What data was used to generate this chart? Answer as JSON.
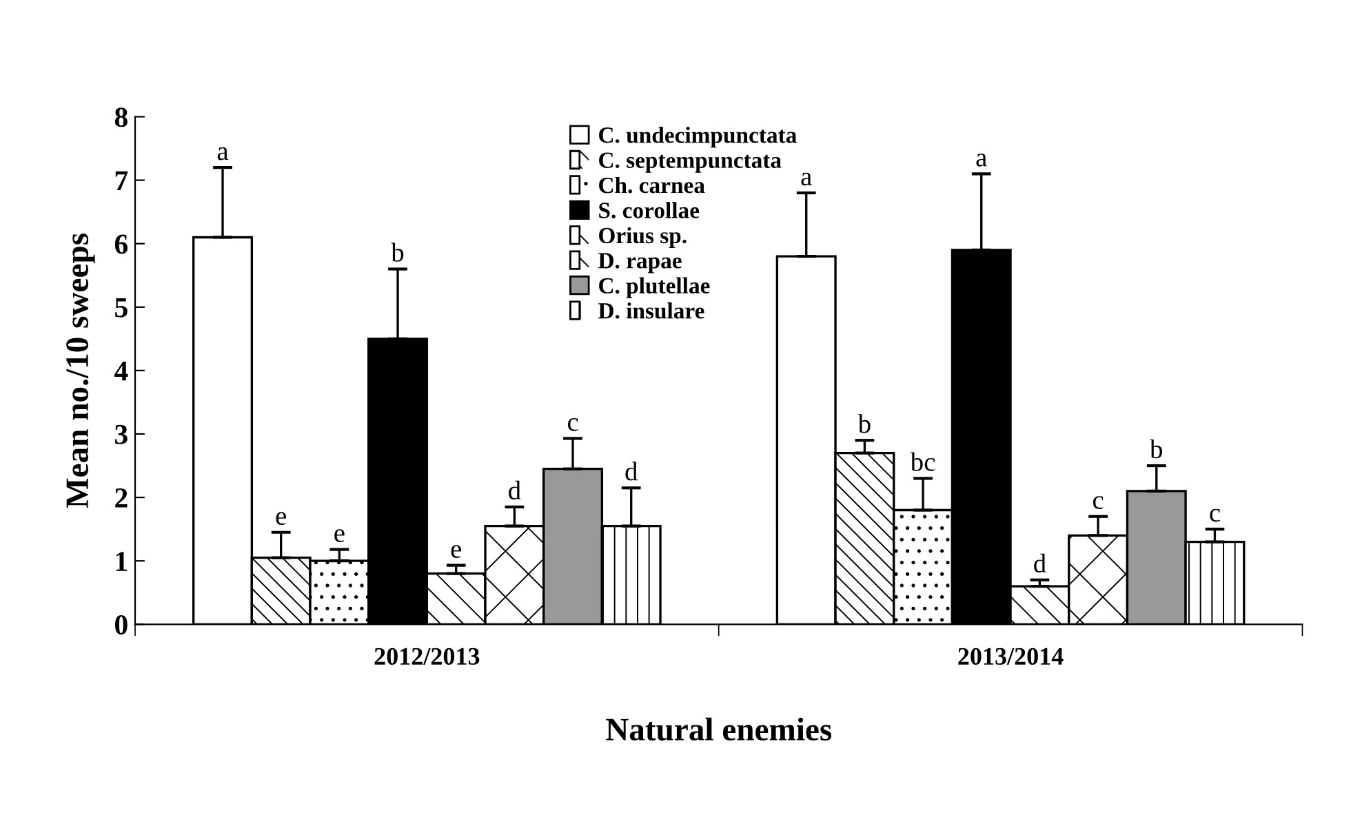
{
  "chart_data": {
    "type": "bar",
    "xlabel": "Natural enemies",
    "ylabel": "Mean no./10 sweeps",
    "categories": [
      "2012/2013",
      "2013/2014"
    ],
    "ylim": [
      0,
      8
    ],
    "yticks": [
      0,
      1,
      2,
      3,
      4,
      5,
      6,
      7,
      8
    ],
    "grid": false,
    "legend": "top",
    "series": [
      {
        "name": "C. undecimpunctata",
        "color": "#ffffff",
        "values": [
          6.1,
          5.8
        ],
        "errors": [
          [
            6.1,
            7.2
          ],
          [
            5.8,
            6.8
          ]
        ],
        "value_labels": [
          "a",
          "a"
        ]
      },
      {
        "name": "C. septempunctata",
        "color": "#ffffff",
        "values": [
          1.05,
          2.7
        ],
        "errors": [
          [
            1.05,
            1.45
          ],
          [
            2.7,
            2.9
          ]
        ],
        "value_labels": [
          "e",
          "b"
        ]
      },
      {
        "name": "Ch. carnea",
        "color": "#ffffff",
        "values": [
          1.0,
          1.8
        ],
        "errors": [
          [
            1.0,
            1.18
          ],
          [
            1.8,
            2.3
          ]
        ],
        "value_labels": [
          "e",
          "bc"
        ]
      },
      {
        "name": "S. corollae",
        "color": "#000000",
        "values": [
          4.5,
          5.9
        ],
        "errors": [
          [
            4.5,
            5.6
          ],
          [
            5.9,
            7.1
          ]
        ],
        "value_labels": [
          "b",
          "a"
        ]
      },
      {
        "name": "Orius sp.",
        "color": "#ffffff",
        "values": [
          0.8,
          0.6
        ],
        "errors": [
          [
            0.8,
            0.93
          ],
          [
            0.6,
            0.7
          ]
        ],
        "value_labels": [
          "e",
          "d"
        ]
      },
      {
        "name": "D. rapae",
        "color": "#ffffff",
        "values": [
          1.55,
          1.4
        ],
        "errors": [
          [
            1.55,
            1.85
          ],
          [
            1.4,
            1.7
          ]
        ],
        "value_labels": [
          "d",
          "c"
        ]
      },
      {
        "name": "C. plutellae",
        "color": "#999999",
        "values": [
          2.45,
          2.1
        ],
        "errors": [
          [
            2.45,
            2.93
          ],
          [
            2.1,
            2.5
          ]
        ],
        "value_labels": [
          "c",
          "b"
        ]
      },
      {
        "name": "D. insulare",
        "color": "#ffffff",
        "values": [
          1.55,
          1.3
        ],
        "errors": [
          [
            1.55,
            2.15
          ],
          [
            1.3,
            1.5
          ]
        ],
        "value_labels": [
          "d",
          "c"
        ]
      }
    ]
  }
}
